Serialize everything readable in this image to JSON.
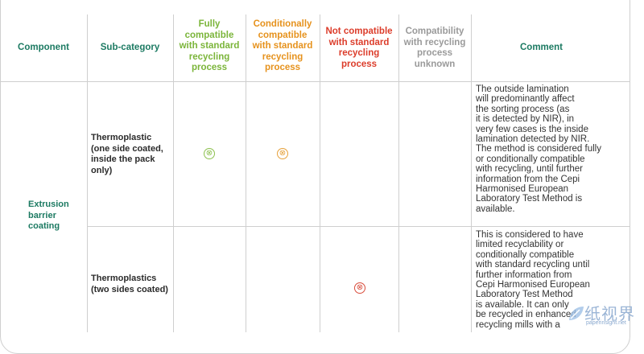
{
  "table": {
    "headers": {
      "component": "Component",
      "subcategory": "Sub-category",
      "fully": "Fully compatible with standard recycling process",
      "conditionally": "Conditionally compatible with standard recycling process",
      "not": "Not compatible with standard recycling process",
      "unknown": "Compatibility with recycling process unknown",
      "comment": "Comment"
    },
    "component": "Extrusion barrier coating",
    "rows": [
      {
        "subcategory": "Thermoplastic (one side coated, inside the pack only)",
        "marks": [
          "fully",
          "conditionally"
        ],
        "comment": "The outside lamination\nwill predominantly affect\nthe sorting process (as\nit is detected by NIR), in\nvery few cases is the inside\nlamination detected by NIR.\nThe method is considered fully\nor conditionally compatible\nwith recycling, until further\ninformation from the Cepi\nHarmonised European\nLaboratory Test Method is\navailable."
      },
      {
        "subcategory": "Thermoplastics (two sides coated)",
        "marks": [
          "not"
        ],
        "comment": "This is considered to have\nlimited recyclability or\nconditionally compatible\nwith standard recycling until\nfurther information from\nCepi Harmonised European\nLaboratory Test Method\nis available. It can only\nbe recycled in enhanced\nrecycling mills with a"
      }
    ]
  },
  "mark_symbol": "⊗",
  "colors": {
    "header_green": "#1c7a62",
    "fully": "#7bb53a",
    "conditionally": "#e6921d",
    "not": "#dc3d2b",
    "unknown": "#9a9a9a"
  },
  "watermark": {
    "title": "纸视界",
    "subtitle": "paperinsight.net"
  }
}
